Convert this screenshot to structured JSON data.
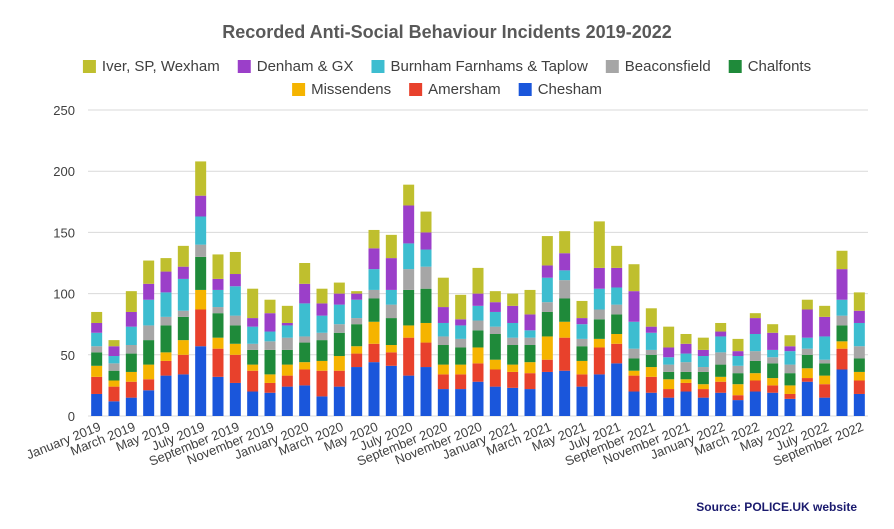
{
  "chart_data": {
    "type": "bar",
    "stacked": true,
    "title": "Recorded Anti-Social Behaviour Incidents 2019-2022",
    "source": "Source: POLICE.UK website",
    "ylim": [
      0,
      250
    ],
    "yticks": [
      0,
      50,
      100,
      150,
      200,
      250
    ],
    "grid": true,
    "legend_position": "top",
    "legend_order": [
      "Iver, SP, Wexham",
      "Denham & GX",
      "Burnham Farnhams & Taplow",
      "Beaconsfield",
      "Chalfonts",
      "Missendens",
      "Amersham",
      "Chesham"
    ],
    "x_tick_labels": [
      "January 2019",
      "March 2019",
      "May 2019",
      "July 2019",
      "September 2019",
      "November 2019",
      "January 2020",
      "March 2020",
      "May 2020",
      "July 2020",
      "September 2020",
      "November 2020",
      "January 2021",
      "March 2021",
      "May 2021",
      "July 2021",
      "September 2021",
      "November 2021",
      "January 2022",
      "March 2022",
      "May 2022",
      "July 2022",
      "September 2022"
    ],
    "categories": [
      "Jan 2019",
      "Feb 2019",
      "Mar 2019",
      "Apr 2019",
      "May 2019",
      "Jun 2019",
      "Jul 2019",
      "Aug 2019",
      "Sep 2019",
      "Oct 2019",
      "Nov 2019",
      "Dec 2019",
      "Jan 2020",
      "Feb 2020",
      "Mar 2020",
      "Apr 2020",
      "May 2020",
      "Jun 2020",
      "Jul 2020",
      "Aug 2020",
      "Sep 2020",
      "Oct 2020",
      "Nov 2020",
      "Dec 2020",
      "Jan 2021",
      "Feb 2021",
      "Mar 2021",
      "Apr 2021",
      "May 2021",
      "Jun 2021",
      "Jul 2021",
      "Aug 2021",
      "Sep 2021",
      "Oct 2021",
      "Nov 2021",
      "Dec 2021",
      "Jan 2022",
      "Feb 2022",
      "Mar 2022",
      "Apr 2022",
      "May 2022",
      "Jun 2022",
      "Jul 2022",
      "Aug 2022",
      "Sep 2022"
    ],
    "series": [
      {
        "name": "Chesham",
        "color": "#1a56db",
        "values": [
          18,
          12,
          15,
          21,
          33,
          34,
          57,
          32,
          27,
          20,
          19,
          24,
          25,
          16,
          24,
          40,
          44,
          41,
          33,
          40,
          22,
          22,
          28,
          24,
          23,
          22,
          36,
          37,
          24,
          34,
          43,
          20,
          19,
          15,
          20,
          15,
          19,
          13,
          20,
          19,
          14,
          28,
          15,
          38,
          18
        ]
      },
      {
        "name": "Amersham",
        "color": "#e8412c",
        "values": [
          14,
          12,
          13,
          9,
          12,
          16,
          30,
          23,
          23,
          17,
          8,
          9,
          13,
          21,
          13,
          11,
          15,
          11,
          31,
          20,
          12,
          12,
          15,
          14,
          13,
          13,
          10,
          27,
          10,
          22,
          16,
          13,
          13,
          7,
          7,
          7,
          9,
          4,
          9,
          6,
          4,
          3,
          11,
          17,
          11
        ]
      },
      {
        "name": "Missendens",
        "color": "#f5b400",
        "values": [
          9,
          5,
          8,
          12,
          7,
          12,
          16,
          9,
          9,
          5,
          7,
          9,
          6,
          8,
          12,
          6,
          18,
          6,
          10,
          16,
          8,
          8,
          13,
          8,
          6,
          9,
          19,
          13,
          11,
          7,
          8,
          4,
          8,
          8,
          3,
          4,
          4,
          9,
          6,
          6,
          7,
          8,
          7,
          6,
          7
        ]
      },
      {
        "name": "Chalfonts",
        "color": "#1f8a3a",
        "values": [
          11,
          8,
          15,
          20,
          22,
          19,
          27,
          20,
          15,
          12,
          20,
          12,
          16,
          17,
          19,
          18,
          19,
          22,
          29,
          28,
          16,
          14,
          14,
          21,
          16,
          14,
          20,
          19,
          12,
          16,
          16,
          10,
          10,
          6,
          6,
          10,
          10,
          9,
          10,
          12,
          10,
          11,
          10,
          13,
          11
        ]
      },
      {
        "name": "Beaconsfield",
        "color": "#a6a6a6",
        "values": [
          5,
          6,
          7,
          12,
          7,
          5,
          10,
          5,
          8,
          5,
          7,
          10,
          5,
          6,
          7,
          5,
          7,
          11,
          17,
          18,
          7,
          7,
          8,
          6,
          6,
          6,
          8,
          15,
          6,
          8,
          8,
          8,
          4,
          6,
          8,
          4,
          10,
          6,
          8,
          5,
          7,
          5,
          3,
          8,
          10
        ]
      },
      {
        "name": "Burnham Farnhams & Taplow",
        "color": "#3dbdd0",
        "values": [
          11,
          6,
          15,
          21,
          20,
          26,
          23,
          14,
          24,
          14,
          8,
          10,
          27,
          14,
          16,
          15,
          17,
          12,
          21,
          14,
          11,
          11,
          12,
          12,
          12,
          6,
          20,
          8,
          12,
          17,
          14,
          22,
          14,
          6,
          7,
          9,
          13,
          8,
          14,
          6,
          11,
          9,
          19,
          13,
          19
        ]
      },
      {
        "name": "Denham & GX",
        "color": "#9b3fc9",
        "values": [
          8,
          8,
          12,
          13,
          17,
          10,
          17,
          9,
          10,
          7,
          15,
          2,
          16,
          10,
          9,
          5,
          17,
          26,
          31,
          14,
          13,
          5,
          10,
          8,
          14,
          13,
          10,
          14,
          5,
          17,
          16,
          25,
          5,
          8,
          8,
          5,
          4,
          4,
          13,
          14,
          4,
          23,
          16,
          25,
          10
        ]
      },
      {
        "name": "Iver, SP, Wexham",
        "color": "#bfbf2e",
        "values": [
          9,
          5,
          17,
          19,
          11,
          17,
          28,
          20,
          18,
          24,
          11,
          14,
          17,
          12,
          9,
          2,
          15,
          19,
          17,
          17,
          24,
          20,
          21,
          9,
          10,
          20,
          24,
          18,
          14,
          38,
          18,
          22,
          15,
          17,
          8,
          10,
          7,
          10,
          4,
          7,
          9,
          8,
          9,
          15,
          15
        ]
      }
    ]
  }
}
